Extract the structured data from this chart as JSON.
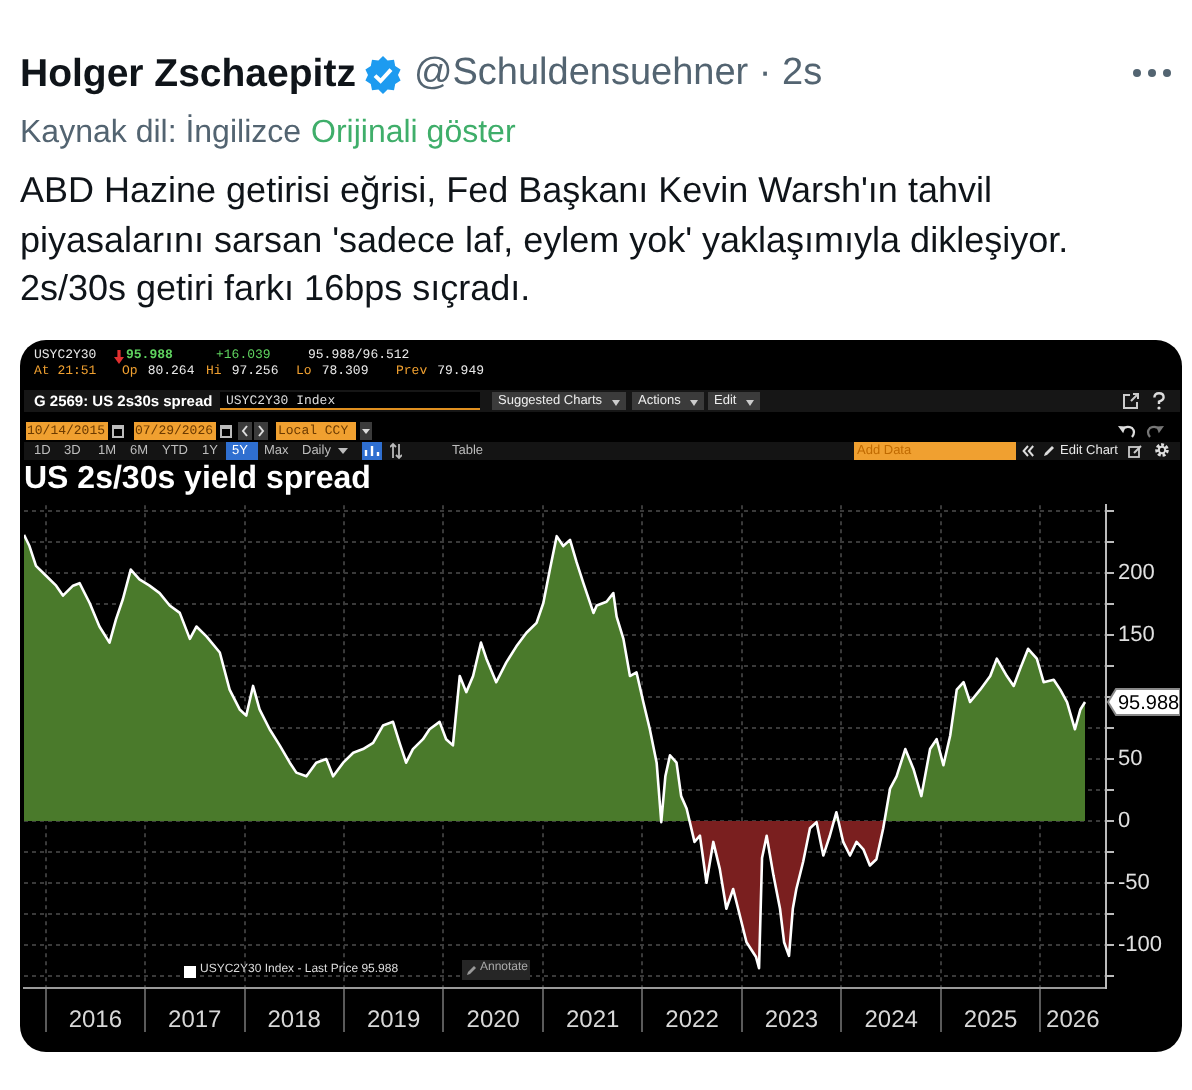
{
  "chart_data": {
    "type": "area",
    "title": "US 2s/30s yield spread",
    "x": [
      "2015-10-14",
      "2015-11-03",
      "2015-11-27",
      "2016-01-03",
      "2016-02-09",
      "2016-03-05",
      "2016-04-11",
      "2016-05-05",
      "2016-06-11",
      "2016-07-17",
      "2016-08-23",
      "2016-09-16",
      "2016-10-11",
      "2016-11-09",
      "2016-12-11",
      "2017-01-17",
      "2017-02-23",
      "2017-04-01",
      "2017-05-08",
      "2017-06-14",
      "2017-07-08",
      "2017-08-14",
      "2017-10-02",
      "2017-11-07",
      "2017-12-14",
      "2018-01-07",
      "2018-02-01",
      "2018-02-25",
      "2018-04-03",
      "2018-05-10",
      "2018-06-16",
      "2018-07-10",
      "2018-08-16",
      "2018-09-21",
      "2018-10-28",
      "2018-11-22",
      "2018-12-29",
      "2019-02-04",
      "2019-03-12",
      "2019-04-18",
      "2019-05-24",
      "2019-06-30",
      "2019-07-24",
      "2019-08-17",
      "2019-09-11",
      "2019-10-18",
      "2019-11-11",
      "2019-12-18",
      "2020-01-11",
      "2020-02-05",
      "2020-03-01",
      "2020-03-25",
      "2020-04-19",
      "2020-05-18",
      "2020-06-07",
      "2020-07-13",
      "2020-08-19",
      "2020-09-25",
      "2020-11-01",
      "2020-12-08",
      "2021-01-02",
      "2021-01-26",
      "2021-02-20",
      "2021-03-16",
      "2021-04-10",
      "2021-05-04",
      "2021-05-29",
      "2021-07-05",
      "2021-07-17",
      "2021-08-22",
      "2021-09-16",
      "2021-09-28",
      "2021-10-23",
      "2021-11-16",
      "2021-12-10",
      "2022-01-04",
      "2022-01-28",
      "2022-02-22",
      "2022-03-11",
      "2022-03-26",
      "2022-04-12",
      "2022-05-06",
      "2022-05-23",
      "2022-06-12",
      "2022-07-11",
      "2022-07-31",
      "2022-08-24",
      "2022-09-18",
      "2022-10-12",
      "2022-11-05",
      "2022-11-30",
      "2022-12-24",
      "2023-01-18",
      "2023-02-22",
      "2023-03-05",
      "2023-03-16",
      "2023-04-02",
      "2023-04-27",
      "2023-05-21",
      "2023-06-05",
      "2023-06-23",
      "2023-07-07",
      "2023-07-20",
      "2023-08-14",
      "2023-09-08",
      "2023-10-02",
      "2023-10-27",
      "2023-11-20",
      "2023-12-14",
      "2024-01-08",
      "2024-02-02",
      "2024-02-26",
      "2024-03-22",
      "2024-04-15",
      "2024-05-09",
      "2024-06-03",
      "2024-06-28",
      "2024-07-22",
      "2024-08-23",
      "2024-09-22",
      "2024-10-21",
      "2024-11-22",
      "2024-12-16",
      "2025-01-10",
      "2025-02-04",
      "2025-02-28",
      "2025-03-25",
      "2025-04-18",
      "2025-05-25",
      "2025-07-01",
      "2025-07-25",
      "2025-08-31",
      "2025-09-25",
      "2025-10-19",
      "2025-11-17",
      "2025-12-19",
      "2026-01-13",
      "2026-02-19",
      "2026-03-15",
      "2026-04-09",
      "2026-05-08",
      "2026-05-28",
      "2026-06-14"
    ],
    "series": [
      {
        "name": "USYC2Y30 Index - Last Price 95.988",
        "color": "#ffffff",
        "values": [
          231,
          222,
          206,
          198,
          190,
          182,
          190,
          192,
          176,
          157,
          144,
          163,
          179,
          203,
          195,
          190,
          184,
          174,
          168,
          147,
          157,
          149,
          136,
          106,
          90,
          85,
          109,
          90,
          74,
          61,
          47,
          39,
          36,
          47,
          50,
          36,
          47,
          55,
          58,
          63,
          77,
          80,
          63,
          47,
          58,
          66,
          74,
          80,
          66,
          61,
          117,
          104,
          117,
          144,
          131,
          112,
          128,
          141,
          152,
          160,
          176,
          203,
          230,
          222,
          227,
          209,
          192,
          168,
          174,
          177,
          184,
          165,
          147,
          117,
          120,
          96,
          74,
          47,
          -1,
          36,
          53,
          47,
          20,
          10,
          -17,
          -12,
          -50,
          -17,
          -39,
          -71,
          -55,
          -76,
          -98,
          -110,
          -119,
          -30,
          -12,
          -44,
          -71,
          -98,
          -109,
          -71,
          -55,
          -33,
          -6,
          -1,
          -28,
          -12,
          7,
          -17,
          -28,
          -17,
          -23,
          -36,
          -31,
          -6,
          26,
          36,
          58,
          42,
          20,
          58,
          66,
          45,
          69,
          106,
          112,
          96,
          106,
          117,
          131,
          117,
          109,
          123,
          139,
          131,
          112,
          114,
          106,
          96,
          74,
          90,
          95.988
        ]
      }
    ],
    "xlim": [
      "2015-10-14",
      "2026-08-30"
    ],
    "xticks": [
      {
        "value": "2016-01-01",
        "label": null
      },
      {
        "value": "2016-07-02",
        "label": "2016"
      },
      {
        "value": "2017-01-01",
        "label": null
      },
      {
        "value": "2017-07-02",
        "label": "2017"
      },
      {
        "value": "2018-01-01",
        "label": null
      },
      {
        "value": "2018-07-02",
        "label": "2018"
      },
      {
        "value": "2019-01-01",
        "label": null
      },
      {
        "value": "2019-07-02",
        "label": "2019"
      },
      {
        "value": "2020-01-01",
        "label": null
      },
      {
        "value": "2020-07-02",
        "label": "2020"
      },
      {
        "value": "2021-01-01",
        "label": null
      },
      {
        "value": "2021-07-02",
        "label": "2021"
      },
      {
        "value": "2022-01-01",
        "label": null
      },
      {
        "value": "2022-07-02",
        "label": "2022"
      },
      {
        "value": "2023-01-01",
        "label": null
      },
      {
        "value": "2023-07-02",
        "label": "2023"
      },
      {
        "value": "2024-01-01",
        "label": null
      },
      {
        "value": "2024-07-02",
        "label": "2024"
      },
      {
        "value": "2025-01-01",
        "label": null
      },
      {
        "value": "2025-07-02",
        "label": "2025"
      },
      {
        "value": "2026-01-01",
        "label": null
      },
      {
        "value": "2026-04-30",
        "label": "2026"
      }
    ],
    "ylim": [
      -135,
      255
    ],
    "yticks": [
      {
        "value": -125,
        "label": null
      },
      -100,
      {
        "value": -75,
        "label": null
      },
      -50,
      {
        "value": -25,
        "label": null
      },
      0,
      {
        "value": 25,
        "label": null
      },
      50,
      {
        "value": 75,
        "label": null
      },
      {
        "value": 100,
        "label": null
      },
      {
        "value": 125,
        "label": null
      },
      150,
      {
        "value": 175,
        "label": null
      },
      200,
      {
        "value": 225,
        "label": null
      },
      {
        "value": 250,
        "label": null
      }
    ],
    "grid": true,
    "legend": "bottom left",
    "annotations": [
      "Holger Zschaepitz",
      "@Schuldensuehner · 2s",
      "Kaynak dil: İngilizce",
      "Orijinali göster",
      "ABD Hazine getirisi eğrisi, Fed Başkanı Kevin Warsh'ın tahvil piyasalarını sarsan 'sadece laf, eylem yok' yaklaşımıyla dikleşiyor. 2s/30s getiri farkı 16bps sıçradı.",
      "USYC2Y30",
      "95.988",
      "+16.039",
      "95.988/96.512",
      "At 21:51",
      "Op 80.264",
      "Hi 97.256",
      "Lo 78.309",
      "Prev 79.949",
      "G 2569: US 2s30s spread",
      "USYC2Y30 Index",
      "Suggested Charts",
      "Actions",
      "Edit",
      "10/14/2015",
      "07/29/2026",
      "Local CCY",
      "1D",
      "3D",
      "1M",
      "6M",
      "YTD",
      "1Y",
      "5Y",
      "Max",
      "Daily",
      "Table",
      "Add Data",
      "Edit Chart",
      "Annotate",
      {
        "text": "95.988",
        "x": "2026-06-14",
        "y": 95.988
      }
    ]
  }
}
